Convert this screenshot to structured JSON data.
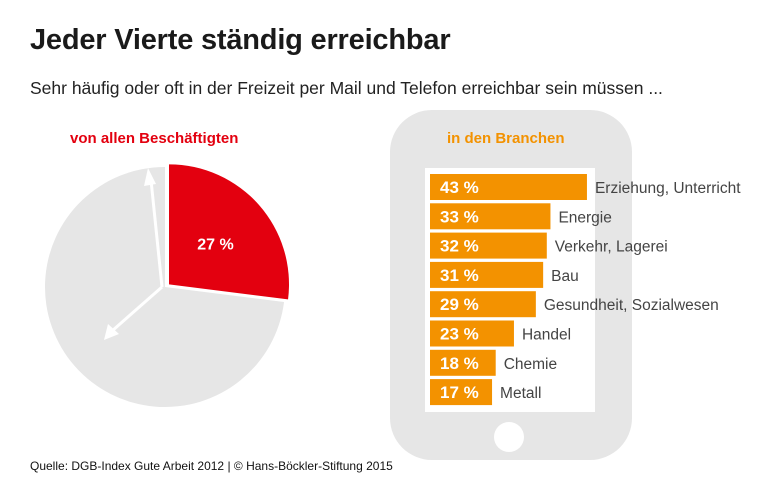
{
  "title": "Jeder Vierte ständig erreichbar",
  "subtitle": "Sehr häufig oder oft in der Freizeit per Mail und Telefon erreichbar sein müssen ...",
  "source": "Quelle: DGB-Index Gute Arbeit 2012 | © Hans-Böckler-Stiftung 2015",
  "chart_data": [
    {
      "type": "pie",
      "title": "von allen Beschäftigten",
      "values": [
        27,
        73
      ],
      "labels": [
        "27 %",
        ""
      ],
      "colors": [
        "#e3000f",
        "#e6e6e6"
      ]
    },
    {
      "type": "bar",
      "orientation": "horizontal",
      "title": "in den Branchen",
      "categories": [
        "Erziehung, Unterricht",
        "Energie",
        "Verkehr, Lagerei",
        "Bau",
        "Gesundheit, Sozialwesen",
        "Handel",
        "Chemie",
        "Metall"
      ],
      "values": [
        43,
        33,
        32,
        31,
        29,
        23,
        18,
        17
      ],
      "value_labels": [
        "43 %",
        "33 %",
        "32 %",
        "31 %",
        "29 %",
        "23 %",
        "18 %",
        "17 %"
      ],
      "unit": "%",
      "color": "#f39200"
    }
  ]
}
